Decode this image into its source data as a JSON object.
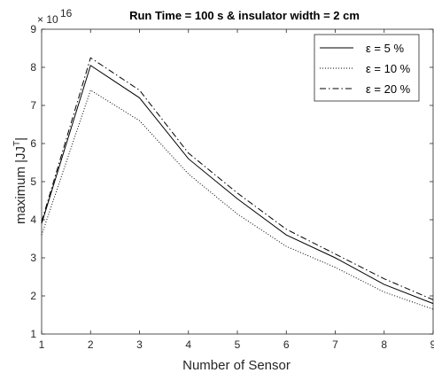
{
  "chart_data": {
    "type": "line",
    "title": "Run Time = 100 s & insulator width = 2 cm",
    "xlabel": "Number of Sensor",
    "ylabel": "maximum |JJ",
    "ylabel_sup": "T",
    "ylabel_end": "|",
    "y_multiplier_base": "× 10",
    "y_multiplier_exp": "16",
    "x": [
      1,
      2,
      3,
      4,
      5,
      6,
      7,
      8,
      9
    ],
    "xlim": [
      1,
      9
    ],
    "ylim": [
      1,
      9
    ],
    "xticks": [
      "1",
      "2",
      "3",
      "4",
      "5",
      "6",
      "7",
      "8",
      "9"
    ],
    "yticks": [
      "1",
      "2",
      "3",
      "4",
      "5",
      "6",
      "7",
      "8",
      "9"
    ],
    "grid": false,
    "legend_position": "top-right",
    "series": [
      {
        "name": "ε = 5 %",
        "style": "solid",
        "color": "#000000",
        "values": [
          3.9,
          8.05,
          7.2,
          5.6,
          4.55,
          3.6,
          3.0,
          2.3,
          1.8
        ]
      },
      {
        "name": "ε = 10 %",
        "style": "dotted",
        "color": "#000000",
        "values": [
          3.6,
          7.4,
          6.6,
          5.2,
          4.15,
          3.3,
          2.75,
          2.1,
          1.65
        ]
      },
      {
        "name": "ε = 20 %",
        "style": "dashdot",
        "color": "#000000",
        "values": [
          3.95,
          8.25,
          7.4,
          5.75,
          4.7,
          3.75,
          3.1,
          2.45,
          1.9
        ]
      }
    ]
  }
}
